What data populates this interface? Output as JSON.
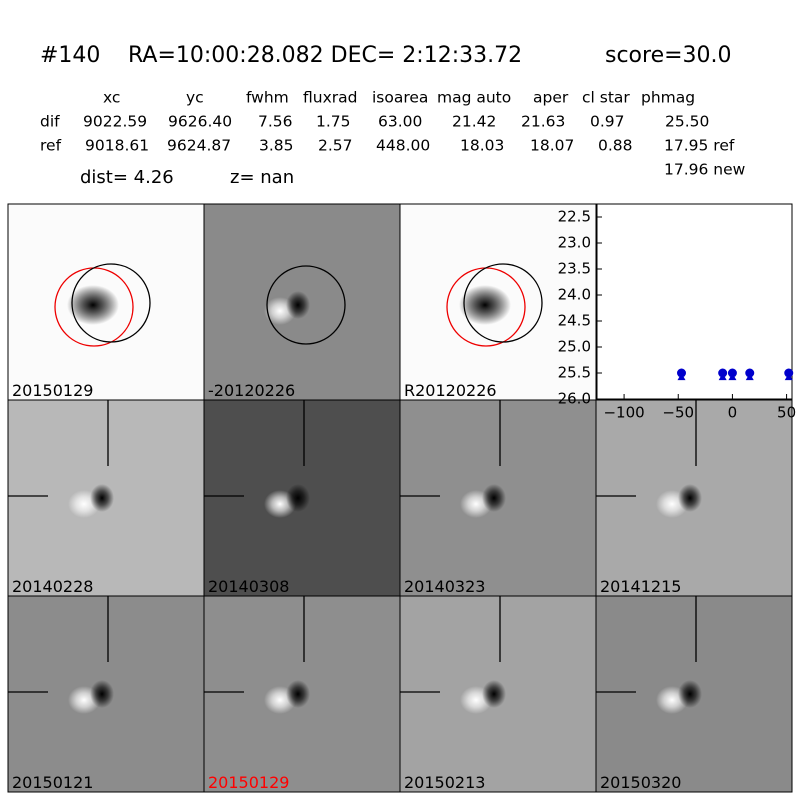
{
  "header": {
    "id": "#140",
    "coords": "RA=10:00:28.082 DEC= 2:12:33.72",
    "score": "score=30.0"
  },
  "table": {
    "columns": [
      "xc",
      "yc",
      "fwhm",
      "fluxrad",
      "isoarea",
      "mag auto",
      "aper",
      "cl star",
      "phmag"
    ],
    "rows": [
      [
        "dif",
        "9022.59",
        "9626.40",
        "7.56",
        "1.75",
        "63.00",
        "21.42",
        "21.63",
        "0.97",
        "25.50"
      ],
      [
        "ref",
        "9018.61",
        "9624.87",
        "3.85",
        "2.57",
        "448.00",
        "18.03",
        "18.07",
        "0.88",
        "17.95 ref"
      ]
    ],
    "extra": "17.96 new",
    "dist": "dist=  4.26",
    "z": "z=   nan"
  },
  "panels": [
    {
      "label": "20150129"
    },
    {
      "label": "-20120226"
    },
    {
      "label": "R20120226"
    },
    {
      "label": "20140228"
    },
    {
      "label": "20140308"
    },
    {
      "label": "20140323"
    },
    {
      "label": "20141215"
    },
    {
      "label": "20150121"
    },
    {
      "label": "20150129",
      "label_color": "#ff0000"
    },
    {
      "label": "20150213"
    },
    {
      "label": "20150320"
    }
  ],
  "chart_data": {
    "type": "scatter",
    "xlim": [
      -125,
      55
    ],
    "ylim": [
      26.0,
      22.25
    ],
    "xticks": [
      {
        "value": -100,
        "label": "−100"
      },
      {
        "value": -50,
        "label": "−50"
      },
      0,
      50
    ],
    "yticks": [
      22.5,
      {
        "value": 23.0,
        "label": "23.0"
      },
      23.5,
      {
        "value": 24.0,
        "label": "24.0"
      },
      24.5,
      {
        "value": 25.0,
        "label": "25.0"
      },
      25.5,
      {
        "value": 26.0,
        "label": "26.0"
      }
    ],
    "series": [
      {
        "marker": "circle",
        "color": "#0000cc",
        "x": [
          -47,
          -9,
          0,
          16,
          52
        ],
        "values": [
          25.5,
          25.5,
          25.5,
          25.5,
          25.5
        ]
      },
      {
        "marker": "triangle",
        "color": "#0000cc",
        "x": [
          -47,
          -9,
          0,
          16,
          52
        ],
        "values": [
          25.58,
          25.58,
          25.58,
          25.58,
          25.58
        ]
      }
    ]
  }
}
